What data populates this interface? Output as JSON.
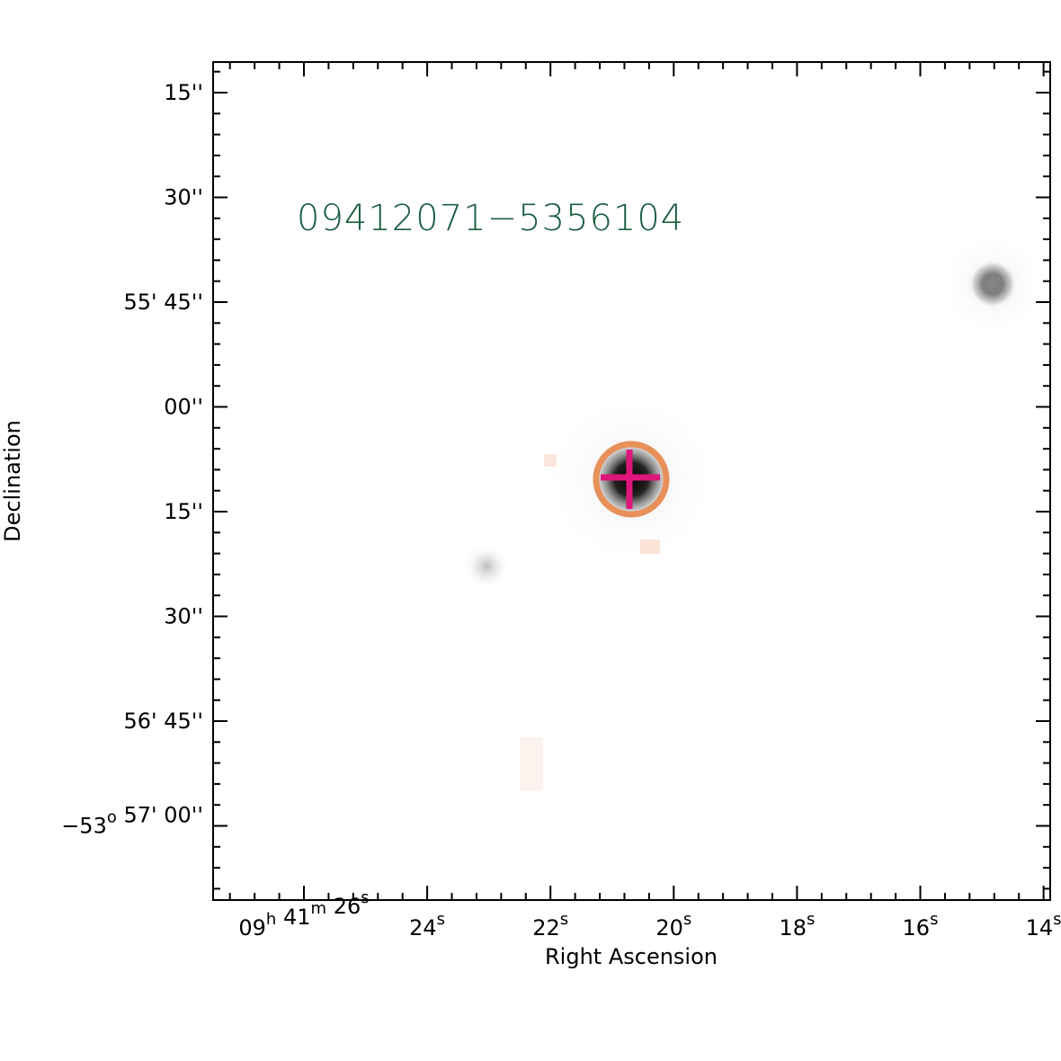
{
  "title": "09412071−5356104",
  "xlabel": "Right Ascension",
  "ylabel": "Declination",
  "xtick_labels": [
    [
      {
        "t": "09",
        "s": "h"
      },
      {
        "t": " 41",
        "s": "m"
      },
      {
        "t": " 26",
        "s": "s"
      }
    ],
    [
      {
        "t": "24",
        "s": "s"
      }
    ],
    [
      {
        "t": "22",
        "s": "s"
      }
    ],
    [
      {
        "t": "20",
        "s": "s"
      }
    ],
    [
      {
        "t": "18",
        "s": "s"
      }
    ],
    [
      {
        "t": "16",
        "s": "s"
      }
    ],
    [
      {
        "t": "14",
        "s": "s"
      }
    ]
  ],
  "ytick_labels": [
    [
      {
        "t": "15''"
      }
    ],
    [
      {
        "t": "30''"
      }
    ],
    [
      {
        "t": "55' 45''"
      }
    ],
    [
      {
        "t": "00''"
      }
    ],
    [
      {
        "t": "15''"
      }
    ],
    [
      {
        "t": "30''"
      }
    ],
    [
      {
        "t": "56' 45''"
      }
    ],
    [
      {
        "t": "−53",
        "s": "o"
      },
      {
        "t": " 57' 00''"
      }
    ]
  ]
}
